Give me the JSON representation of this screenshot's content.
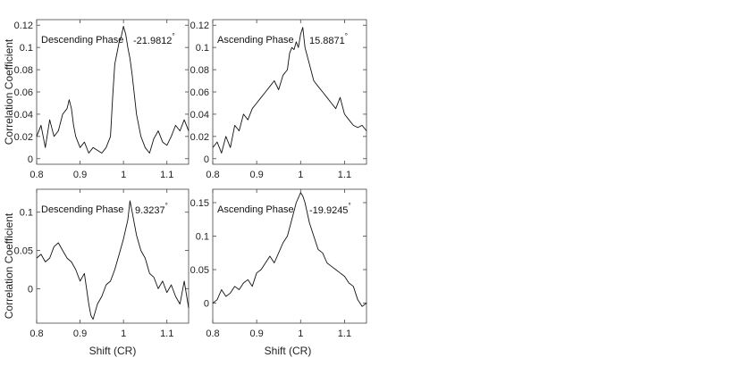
{
  "figure": {
    "ylabel": "Correlation Coefficient",
    "xlabel": "Shift (CR)"
  },
  "chart_data": [
    {
      "type": "line",
      "title": "Descending Phase",
      "annotation": "-21.9812",
      "annotation_unit": "°",
      "xlim": [
        0.8,
        1.15
      ],
      "ylim": [
        -0.005,
        0.125
      ],
      "xticks": [
        "0.8",
        "0.9",
        "1",
        "1.1"
      ],
      "yticks": [
        "0",
        "0.02",
        "0.04",
        "0.06",
        "0.08",
        "0.1",
        "0.12"
      ],
      "series": [
        {
          "x": [
            0.8,
            0.81,
            0.82,
            0.83,
            0.84,
            0.85,
            0.86,
            0.87,
            0.875,
            0.88,
            0.885,
            0.89,
            0.9,
            0.91,
            0.92,
            0.93,
            0.95,
            0.96,
            0.97,
            0.975,
            0.98,
            0.985,
            0.99,
            0.995,
            1.0,
            1.005,
            1.01,
            1.015,
            1.02,
            1.03,
            1.04,
            1.05,
            1.06,
            1.07,
            1.08,
            1.09,
            1.1,
            1.11,
            1.12,
            1.13,
            1.14,
            1.15
          ],
          "y": [
            0.02,
            0.03,
            0.01,
            0.035,
            0.02,
            0.025,
            0.04,
            0.045,
            0.053,
            0.045,
            0.03,
            0.02,
            0.01,
            0.015,
            0.005,
            0.01,
            0.005,
            0.01,
            0.02,
            0.055,
            0.085,
            0.095,
            0.105,
            0.11,
            0.119,
            0.112,
            0.1,
            0.09,
            0.075,
            0.04,
            0.02,
            0.01,
            0.005,
            0.018,
            0.025,
            0.015,
            0.012,
            0.02,
            0.03,
            0.025,
            0.035,
            0.025
          ]
        }
      ]
    },
    {
      "type": "line",
      "title": "Ascending Phase",
      "annotation": "15.8871",
      "annotation_unit": "°",
      "xlim": [
        0.8,
        1.15
      ],
      "ylim": [
        -0.005,
        0.125
      ],
      "xticks": [
        "0.8",
        "0.9",
        "1",
        "1.1"
      ],
      "yticks": [
        "0",
        "0.02",
        "0.04",
        "0.06",
        "0.08",
        "0.1",
        "0.12"
      ],
      "series": [
        {
          "x": [
            0.8,
            0.81,
            0.82,
            0.83,
            0.84,
            0.85,
            0.86,
            0.87,
            0.88,
            0.89,
            0.9,
            0.91,
            0.92,
            0.93,
            0.94,
            0.95,
            0.96,
            0.97,
            0.975,
            0.98,
            0.985,
            0.99,
            0.995,
            1.0,
            1.005,
            1.01,
            1.02,
            1.03,
            1.04,
            1.05,
            1.06,
            1.07,
            1.08,
            1.09,
            1.1,
            1.11,
            1.12,
            1.13,
            1.14,
            1.15
          ],
          "y": [
            0.01,
            0.015,
            0.005,
            0.02,
            0.01,
            0.03,
            0.025,
            0.04,
            0.035,
            0.045,
            0.05,
            0.055,
            0.06,
            0.065,
            0.07,
            0.062,
            0.075,
            0.08,
            0.095,
            0.1,
            0.098,
            0.105,
            0.1,
            0.112,
            0.118,
            0.1,
            0.085,
            0.07,
            0.065,
            0.06,
            0.055,
            0.05,
            0.045,
            0.055,
            0.04,
            0.035,
            0.03,
            0.028,
            0.03,
            0.025
          ]
        }
      ]
    },
    {
      "type": "line",
      "title": "Descending Phase",
      "annotation": "9.3237",
      "annotation_unit": "°",
      "xlim": [
        0.8,
        1.15
      ],
      "ylim": [
        -0.045,
        0.13
      ],
      "xticks": [
        "0.8",
        "0.9",
        "1",
        "1.1"
      ],
      "yticks": [
        "0",
        "0.05",
        "0.1"
      ],
      "series": [
        {
          "x": [
            0.8,
            0.81,
            0.82,
            0.83,
            0.84,
            0.85,
            0.86,
            0.87,
            0.88,
            0.89,
            0.9,
            0.91,
            0.92,
            0.925,
            0.93,
            0.94,
            0.95,
            0.96,
            0.97,
            0.98,
            0.99,
            1.0,
            1.01,
            1.015,
            1.02,
            1.025,
            1.03,
            1.04,
            1.05,
            1.06,
            1.07,
            1.08,
            1.09,
            1.1,
            1.11,
            1.12,
            1.13,
            1.14,
            1.15
          ],
          "y": [
            0.04,
            0.045,
            0.035,
            0.04,
            0.055,
            0.06,
            0.05,
            0.04,
            0.035,
            0.025,
            0.01,
            0.02,
            -0.02,
            -0.035,
            -0.04,
            -0.02,
            -0.01,
            0.005,
            0.01,
            0.025,
            0.045,
            0.065,
            0.09,
            0.115,
            0.1,
            0.085,
            0.07,
            0.05,
            0.04,
            0.02,
            0.015,
            0.0,
            0.01,
            -0.005,
            0.005,
            -0.01,
            -0.02,
            0.01,
            -0.025
          ]
        }
      ]
    },
    {
      "type": "line",
      "title": "Ascending Phase",
      "annotation": "-19.9245",
      "annotation_unit": "°",
      "xlim": [
        0.8,
        1.15
      ],
      "ylim": [
        -0.03,
        0.17
      ],
      "xticks": [
        "0.8",
        "0.9",
        "1",
        "1.1"
      ],
      "yticks": [
        "0",
        "0.05",
        "0.1",
        "0.15"
      ],
      "series": [
        {
          "x": [
            0.8,
            0.81,
            0.82,
            0.83,
            0.84,
            0.85,
            0.86,
            0.87,
            0.88,
            0.89,
            0.9,
            0.91,
            0.92,
            0.93,
            0.94,
            0.95,
            0.96,
            0.97,
            0.98,
            0.99,
            1.0,
            1.005,
            1.01,
            1.02,
            1.03,
            1.04,
            1.05,
            1.06,
            1.07,
            1.08,
            1.09,
            1.1,
            1.11,
            1.12,
            1.13,
            1.14,
            1.15
          ],
          "y": [
            0.0,
            0.005,
            0.02,
            0.01,
            0.015,
            0.025,
            0.02,
            0.03,
            0.035,
            0.025,
            0.045,
            0.05,
            0.06,
            0.07,
            0.06,
            0.075,
            0.09,
            0.1,
            0.125,
            0.15,
            0.165,
            0.16,
            0.15,
            0.12,
            0.1,
            0.08,
            0.075,
            0.06,
            0.055,
            0.05,
            0.045,
            0.04,
            0.03,
            0.025,
            0.005,
            -0.005,
            0.0
          ]
        }
      ]
    }
  ]
}
